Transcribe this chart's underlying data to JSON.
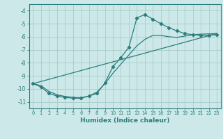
{
  "title": "",
  "xlabel": "Humidex (Indice chaleur)",
  "bg_color": "#cce8e8",
  "line_color": "#2d7d7d",
  "grid_color": "#aacccc",
  "xlim": [
    -0.5,
    23.5
  ],
  "ylim": [
    -11.5,
    -3.5
  ],
  "yticks": [
    -11,
    -10,
    -9,
    -8,
    -7,
    -6,
    -5,
    -4
  ],
  "xticks": [
    0,
    1,
    2,
    3,
    4,
    5,
    6,
    7,
    8,
    9,
    10,
    11,
    12,
    13,
    14,
    15,
    16,
    17,
    18,
    19,
    20,
    21,
    22,
    23
  ],
  "series1_x": [
    0,
    1,
    2,
    3,
    4,
    5,
    6,
    7,
    8,
    9,
    10,
    11,
    12,
    13,
    14,
    15,
    16,
    17,
    18,
    19,
    20,
    21,
    22,
    23
  ],
  "series1_y": [
    -9.6,
    -9.85,
    -10.35,
    -10.55,
    -10.65,
    -10.72,
    -10.72,
    -10.55,
    -10.35,
    -9.55,
    -8.3,
    -7.6,
    -6.8,
    -4.55,
    -4.3,
    -4.65,
    -5.0,
    -5.3,
    -5.55,
    -5.75,
    -5.85,
    -5.88,
    -5.88,
    -5.85
  ],
  "series2_x": [
    0,
    1,
    2,
    3,
    4,
    5,
    6,
    7,
    8,
    9,
    10,
    11,
    12,
    13,
    14,
    15,
    16,
    17,
    18,
    19,
    20,
    21,
    22,
    23
  ],
  "series2_y": [
    -9.6,
    -9.75,
    -10.2,
    -10.45,
    -10.58,
    -10.65,
    -10.68,
    -10.55,
    -10.25,
    -9.6,
    -8.8,
    -8.1,
    -7.4,
    -6.7,
    -6.2,
    -5.9,
    -5.9,
    -6.0,
    -6.05,
    -5.95,
    -5.85,
    -5.8,
    -5.78,
    -5.75
  ],
  "series3_x": [
    0,
    23
  ],
  "series3_y": [
    -9.6,
    -5.75
  ]
}
